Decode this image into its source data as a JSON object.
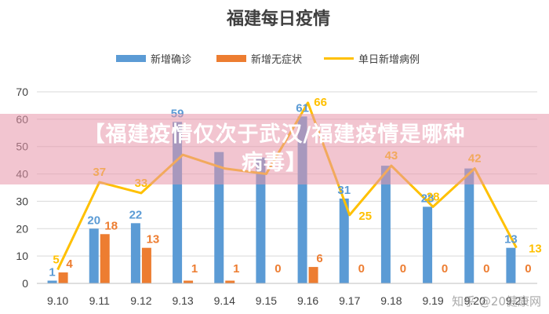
{
  "colors": {
    "confirmed": "#5B9BD5",
    "asymptomatic": "#ED7D31",
    "daily_total": "#FFC000",
    "title": "#404040",
    "grid": "#D9D9D9",
    "banner": "#E896AA"
  },
  "banner": {
    "line1": "【福建疫情仅次于武汉/福建疫情是哪种",
    "line2": "病毒】"
  },
  "watermark": "知乎 @20健康网",
  "chart_data": {
    "type": "bar",
    "title": "福建每日疫情",
    "categories": [
      "9.10",
      "9.11",
      "9.12",
      "9.13",
      "9.14",
      "9.15",
      "9.16",
      "9.17",
      "9.18",
      "9.19",
      "9.20",
      "9.21"
    ],
    "ylim": [
      0,
      70
    ],
    "yticks": [
      0,
      10,
      20,
      30,
      40,
      50,
      60,
      70
    ],
    "grid": true,
    "legend_position": "top",
    "series": [
      {
        "name": "新增确诊",
        "type": "bar",
        "values": [
          1,
          20,
          22,
          59,
          48,
          46,
          61,
          31,
          43,
          28,
          42,
          13
        ]
      },
      {
        "name": "新增无症状",
        "type": "bar",
        "values": [
          4,
          18,
          13,
          1,
          1,
          0,
          6,
          0,
          0,
          0,
          0,
          0
        ]
      },
      {
        "name": "单日新增病例",
        "type": "line",
        "values": [
          5,
          37,
          33,
          47,
          42,
          40,
          66,
          25,
          43,
          28,
          42,
          13
        ]
      }
    ],
    "data_labels": {
      "confirmed": [
        "1",
        "20",
        "22",
        "59",
        "",
        "",
        "61",
        "31",
        "",
        "28",
        "",
        "13"
      ],
      "asymptomatic": [
        "4",
        "18",
        "13",
        "1",
        "1",
        "0",
        "6",
        "0",
        "0",
        "0",
        "0",
        "0"
      ],
      "daily_total": [
        "5",
        "37",
        "33",
        "",
        "",
        "",
        "66",
        "25",
        "43",
        "28",
        "42",
        "13"
      ]
    }
  }
}
